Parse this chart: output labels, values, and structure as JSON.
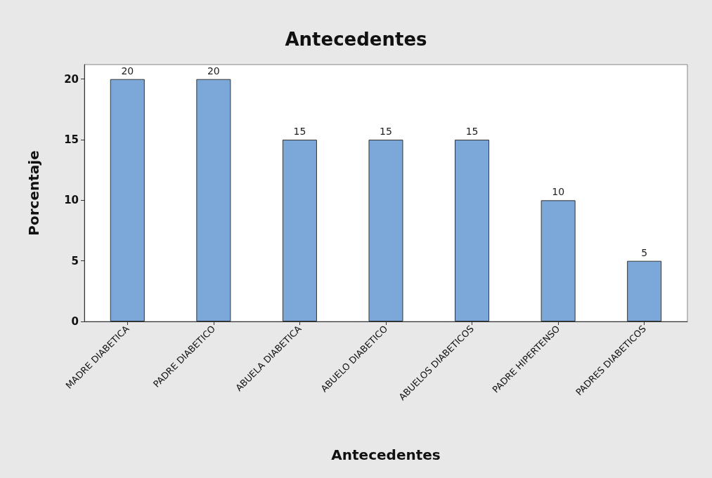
{
  "chart_data": {
    "type": "bar",
    "title": "Antecedentes",
    "xlabel": "Antecedentes",
    "ylabel": "Porcentaje",
    "categories": [
      "MADRE DIABETICA",
      "PADRE DIABETICO",
      "ABUELA DIABETICA",
      "ABUELO DIABETICO",
      "ABUELOS DIABETICOS",
      "PADRE HIPERTENSO",
      "PADRES DIABETICOS"
    ],
    "values": [
      20,
      20,
      15,
      15,
      15,
      10,
      5
    ],
    "color": "#7ba7d9",
    "ylim": [
      0,
      21.2
    ],
    "yticks": [
      0,
      5,
      10,
      15,
      20
    ],
    "grid": false,
    "data_labels": true
  }
}
